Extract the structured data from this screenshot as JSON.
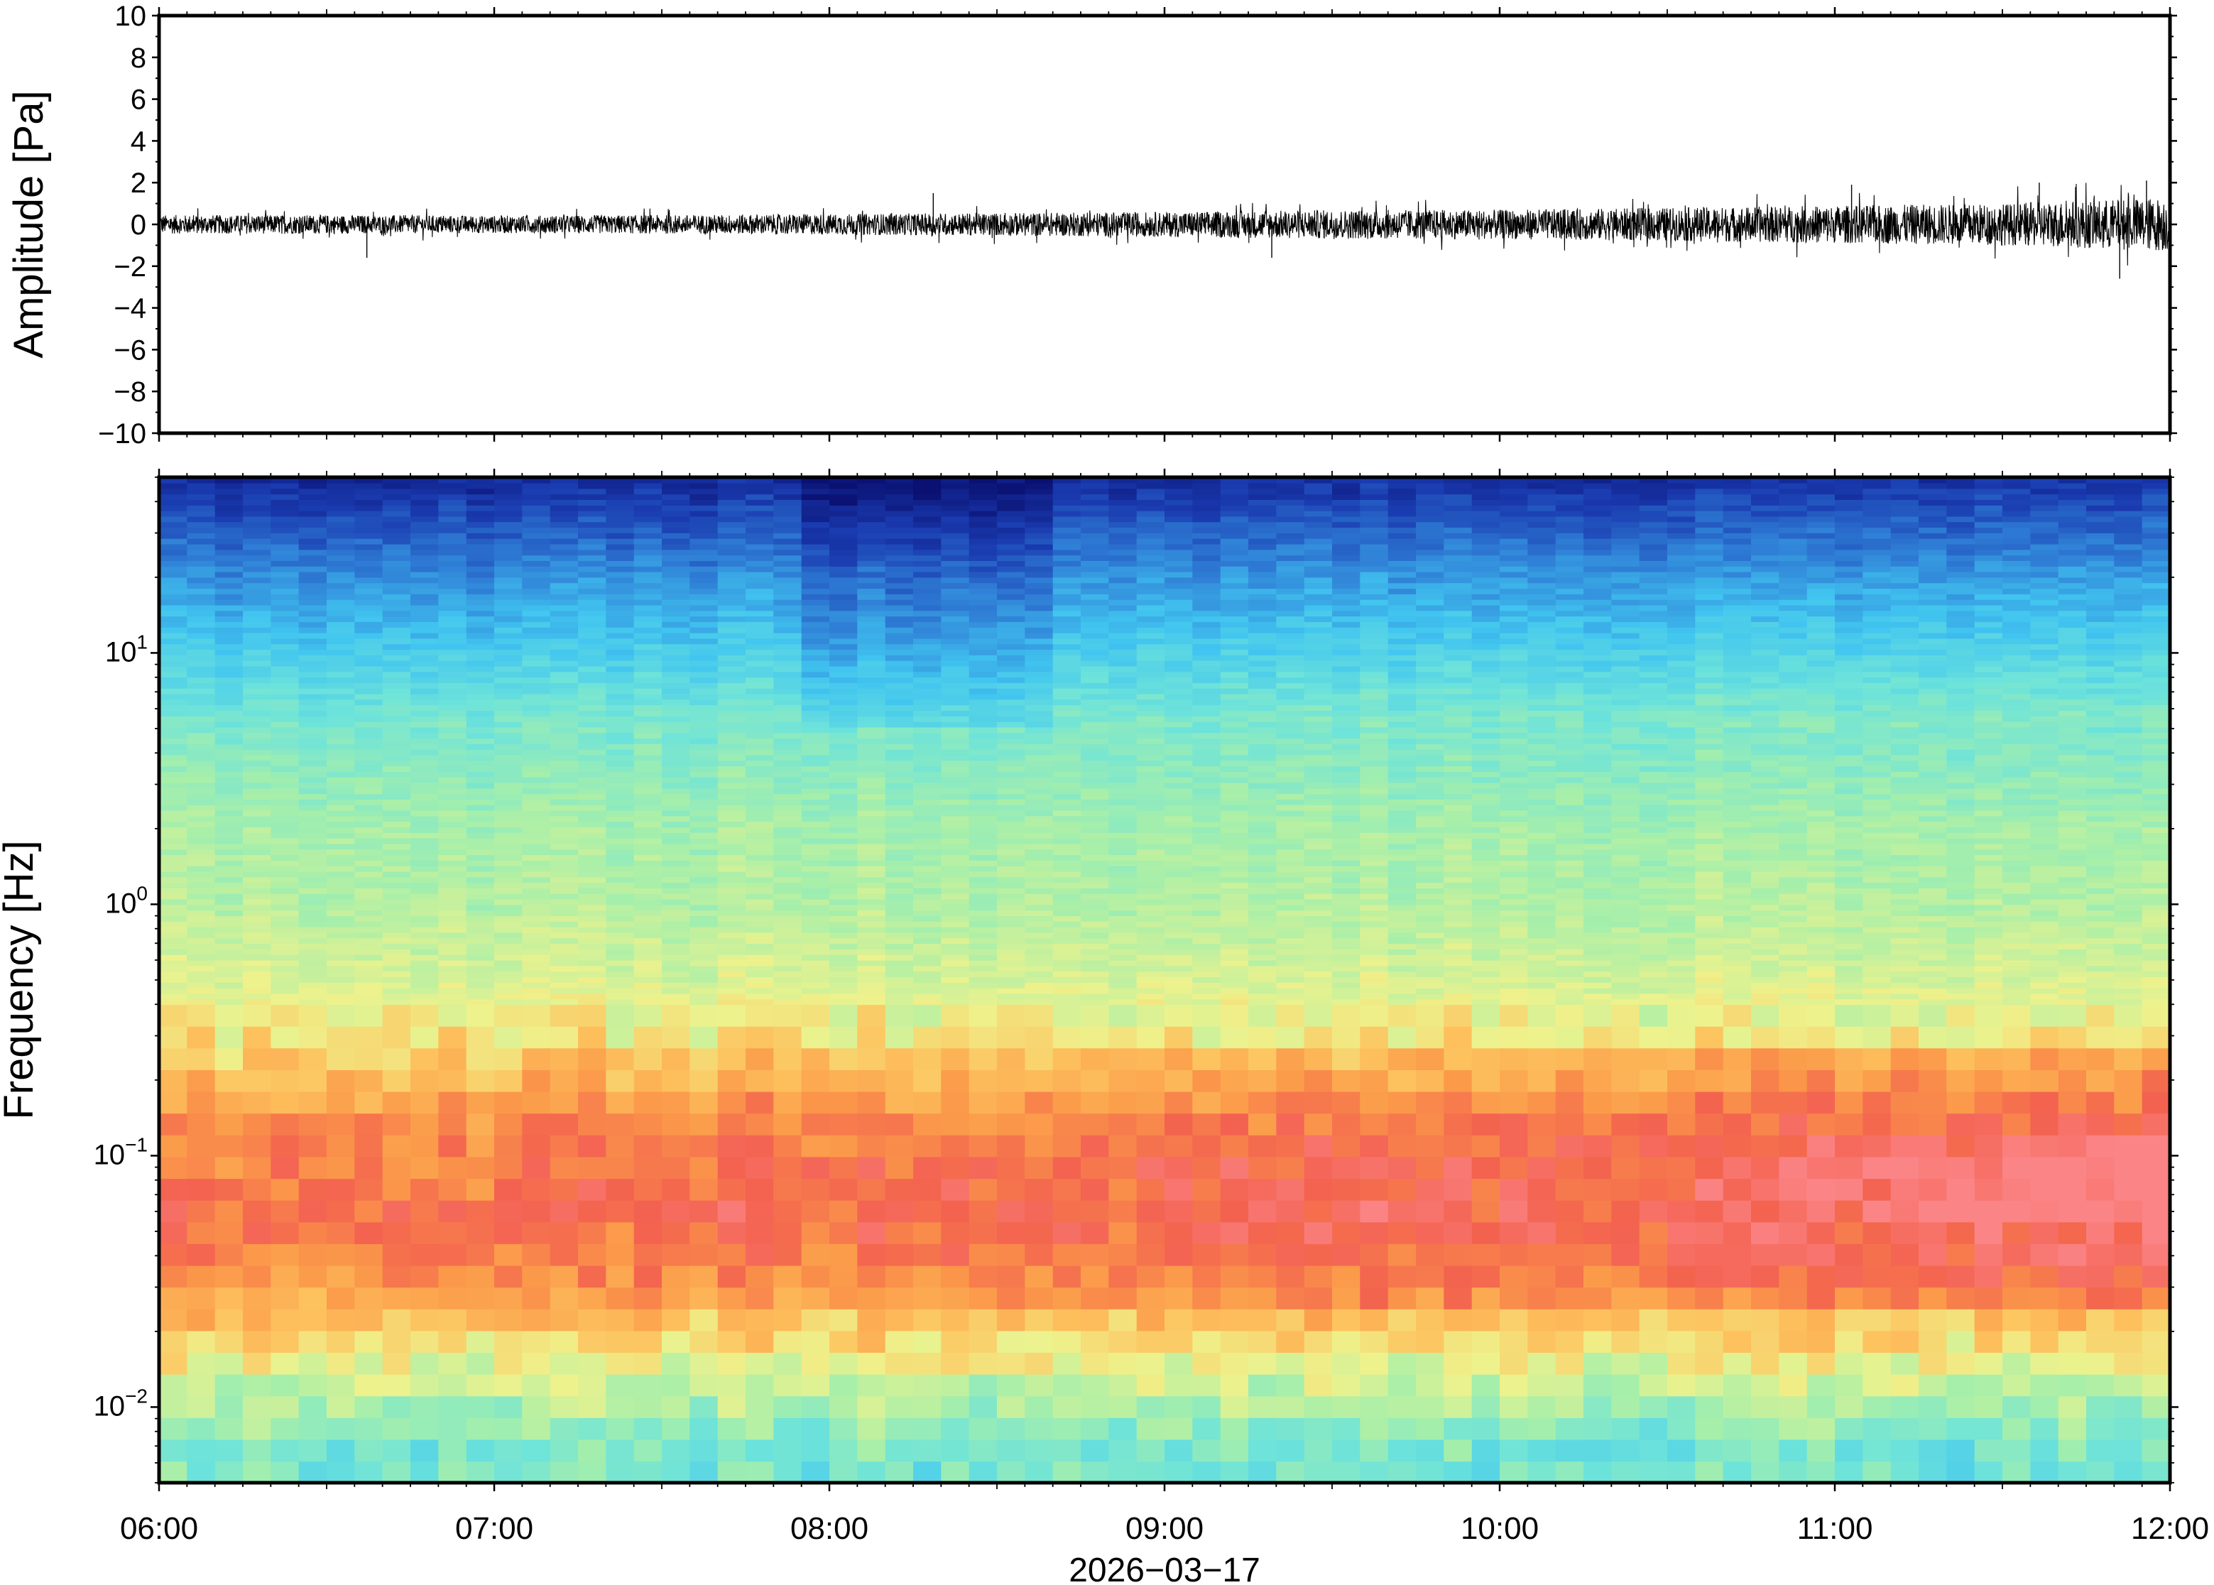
{
  "chart_data": [
    {
      "type": "line",
      "ylabel": "Amplitude [Pa]",
      "ylim": [
        -10,
        10
      ],
      "yticks": [
        {
          "value": 10,
          "label": "10"
        },
        {
          "value": 8,
          "label": "8"
        },
        {
          "value": 6,
          "label": "6"
        },
        {
          "value": 4,
          "label": "4"
        },
        {
          "value": 2,
          "label": "2"
        },
        {
          "value": 0,
          "label": "0"
        },
        {
          "value": -2,
          "label": "−2"
        },
        {
          "value": -4,
          "label": "−4"
        },
        {
          "value": -6,
          "label": "−6"
        },
        {
          "value": -8,
          "label": "−8"
        },
        {
          "value": -10,
          "label": "−10"
        }
      ],
      "x_range": [
        "06:00",
        "12:00"
      ],
      "grid": false,
      "series": [
        {
          "color": "#000000",
          "envelope_hours": [
            6.0,
            6.5,
            7.0,
            7.5,
            8.0,
            8.5,
            9.0,
            9.5,
            10.0,
            10.5,
            11.0,
            11.5,
            12.0
          ],
          "envelope_pa": [
            0.45,
            0.45,
            0.42,
            0.45,
            0.5,
            0.55,
            0.6,
            0.7,
            0.7,
            0.8,
            0.9,
            1.0,
            1.3
          ],
          "peaks": [
            {
              "hour": 6.62,
              "value": -1.6
            },
            {
              "hour": 8.31,
              "value": 1.5
            },
            {
              "hour": 9.32,
              "value": -1.6
            },
            {
              "hour": 11.05,
              "value": 1.9
            },
            {
              "hour": 11.61,
              "value": 2.0
            },
            {
              "hour": 11.93,
              "value": 2.1
            },
            {
              "hour": 11.85,
              "value": -2.6
            }
          ]
        }
      ]
    },
    {
      "type": "heatmap",
      "ylabel": "Frequency [Hz]",
      "yscale": "log",
      "ylim": [
        0.005,
        50
      ],
      "yticks": [
        {
          "value": 10,
          "base": "10",
          "exp": "1"
        },
        {
          "value": 1,
          "base": "10",
          "exp": "0"
        },
        {
          "value": 0.1,
          "base": "10",
          "exp": "−1"
        },
        {
          "value": 0.01,
          "base": "10",
          "exp": "−2"
        }
      ],
      "xlabel": "2026−03−17",
      "xticks": [
        "06:00",
        "07:00",
        "08:00",
        "09:00",
        "10:00",
        "11:00",
        "12:00"
      ],
      "x_range_hours": [
        6,
        12
      ],
      "colormap": [
        "#0a1172",
        "#1a3bb0",
        "#2f7fd6",
        "#41c5f0",
        "#6de3da",
        "#a7efaa",
        "#eef28c",
        "#fdc25e",
        "#fb9a4a",
        "#f3624f",
        "#fb8486"
      ],
      "power_profile": {
        "frequency_hz": [
          50,
          35,
          20,
          10,
          5,
          2,
          1,
          0.5,
          0.3,
          0.2,
          0.15,
          0.1,
          0.06,
          0.04,
          0.025,
          0.015,
          0.01,
          0.007,
          0.005
        ],
        "relative_level": [
          0.05,
          0.12,
          0.22,
          0.32,
          0.43,
          0.5,
          0.52,
          0.57,
          0.63,
          0.72,
          0.78,
          0.84,
          0.86,
          0.83,
          0.74,
          0.6,
          0.5,
          0.43,
          0.42
        ]
      },
      "trend_over_time": "low-frequency band (0.03–0.2 Hz) intensifies toward 12:00; high-frequency band darkest around 08:00–08:40"
    }
  ]
}
